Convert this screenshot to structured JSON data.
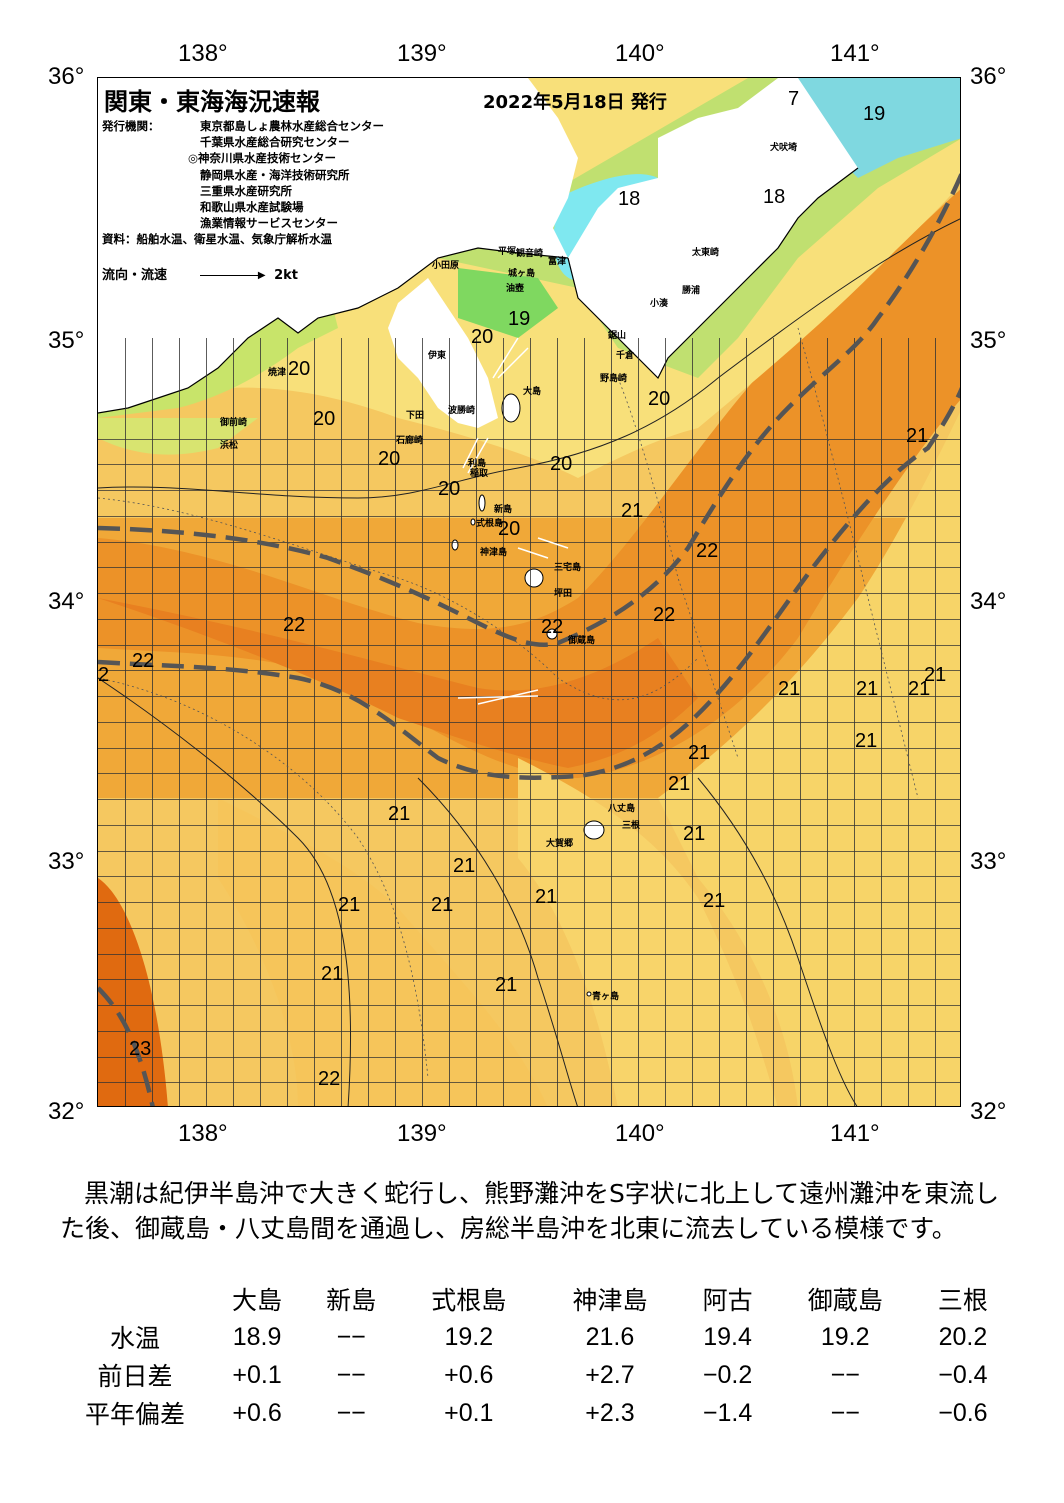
{
  "map": {
    "title": "関東・東海海況速報",
    "issue_date": "2022年5月18日 発行",
    "issuer_label": "発行機関：",
    "issuers": [
      "東京都島しょ農林水産総合センター",
      "千葉県水産総合研究センター",
      "◎神奈川県水産技術センター",
      "静岡県水産・海洋技術研究所",
      "三重県水産研究所",
      "和歌山県水産試験場",
      "漁業情報サービスセンター"
    ],
    "source": "資料：船舶水温、衛星水温、気象庁解析水温",
    "legend_label": "流向・流速",
    "legend_value": "2kt",
    "lon_ticks": [
      "138°",
      "139°",
      "140°",
      "141°"
    ],
    "lat_ticks": [
      "36°",
      "35°",
      "34°",
      "33°",
      "32°"
    ],
    "temperature_labels": [
      "2",
      "7",
      "19",
      "18",
      "18",
      "19",
      "20",
      "20",
      "20",
      "20",
      "20",
      "20",
      "20",
      "20",
      "21",
      "21",
      "21",
      "21",
      "21",
      "21",
      "21",
      "21",
      "21",
      "21",
      "21",
      "21",
      "21",
      "21",
      "21",
      "21",
      "21",
      "21",
      "22",
      "22",
      "22",
      "22",
      "22",
      "22",
      "23"
    ],
    "place_names": [
      "犬吠埼",
      "太東崎",
      "勝浦",
      "小湊",
      "鋸山",
      "千倉",
      "野島崎",
      "大島",
      "新島",
      "式根島",
      "神津島",
      "三宅島",
      "坪田",
      "御蔵島",
      "八丈島",
      "三根",
      "大賀郷",
      "青ヶ島",
      "小田原",
      "平塚",
      "城ヶ島",
      "油壺",
      "観音崎",
      "富津",
      "伊東",
      "稲取",
      "下田",
      "石廊崎",
      "焼津",
      "御前崎",
      "浜松",
      "波勝崎",
      "利島"
    ],
    "colors": {
      "land": "#ffffff",
      "cold_blue": "#7fe8f0",
      "green": "#7fd860",
      "yellow_green": "#c8e86a",
      "yellow": "#f8e070",
      "light_orange": "#f5c050",
      "orange": "#f0a030",
      "dark_orange": "#e88020",
      "deep_orange": "#e06a10",
      "kuroshio_axis": "#555555"
    }
  },
  "summary": "黒潮は紀伊半島沖で大きく蛇行し、熊野灘沖をS字状に北上して遠州灘沖を東流した後、御蔵島・八丈島間を通過し、房総半島沖を北東に流去している模様です。",
  "table": {
    "columns": [
      "大島",
      "新島",
      "式根島",
      "神津島",
      "阿古",
      "御蔵島",
      "三根"
    ],
    "rows": [
      {
        "label": "水温",
        "values": [
          "18.9",
          "−−",
          "19.2",
          "21.6",
          "19.4",
          "19.2",
          "20.2"
        ]
      },
      {
        "label": "前日差",
        "values": [
          "+0.1",
          "−−",
          "+0.6",
          "+2.7",
          "−0.2",
          "−−",
          "−0.4"
        ]
      },
      {
        "label": "平年偏差",
        "values": [
          "+0.6",
          "−−",
          "+0.1",
          "+2.3",
          "−1.4",
          "−−",
          "−0.6"
        ]
      }
    ]
  }
}
